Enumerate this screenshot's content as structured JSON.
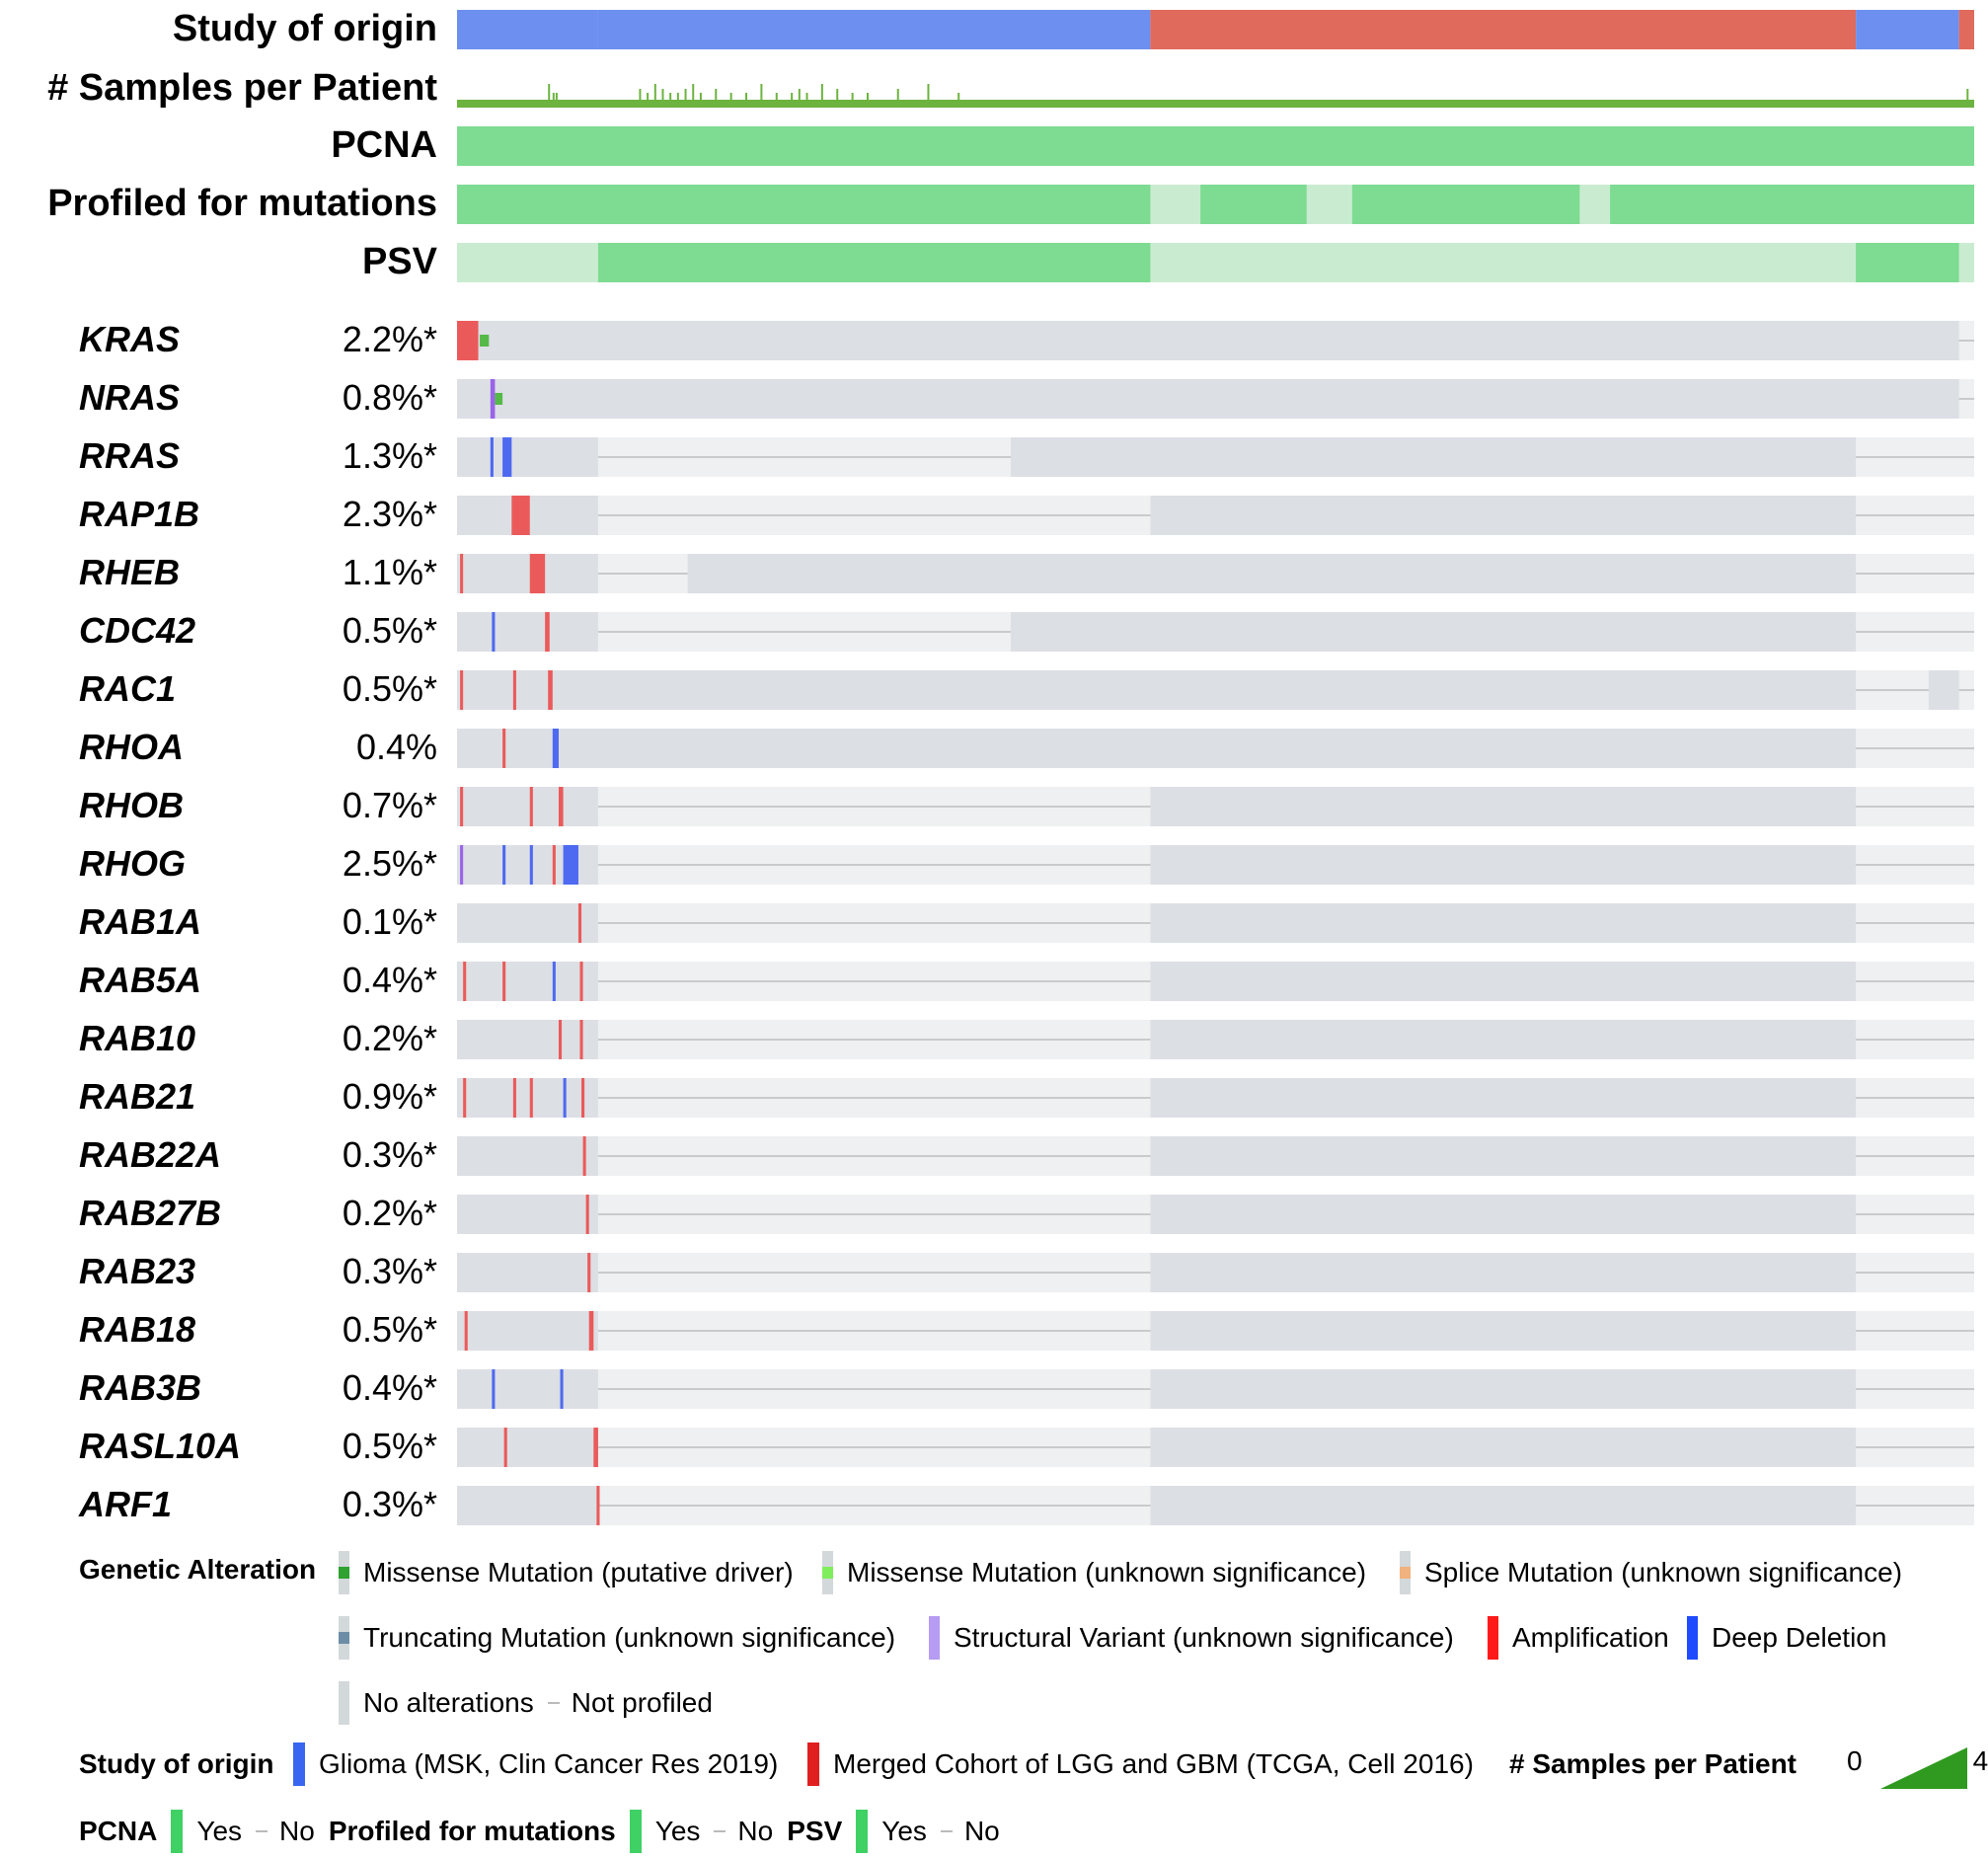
{
  "chart_data": {
    "type": "oncoprint",
    "sample_axis": {
      "min": 0,
      "max": 1
    },
    "clinical_tracks": [
      {
        "label": "Study of origin",
        "kind": "categorical",
        "segments": [
          {
            "from": 0.0,
            "to": 0.093,
            "study": "Glioma (MSK, Clin Cancer Res 2019)"
          },
          {
            "from": 0.093,
            "to": 0.457,
            "study": "Glioma (MSK, Clin Cancer Res 2019)"
          },
          {
            "from": 0.457,
            "to": 0.922,
            "study": "Merged Cohort of LGG and GBM (TCGA, Cell 2016)"
          },
          {
            "from": 0.922,
            "to": 0.99,
            "study": "Glioma (MSK, Clin Cancer Res 2019)"
          },
          {
            "from": 0.99,
            "to": 1.0,
            "study": "Merged Cohort of LGG and GBM (TCGA, Cell 2016)"
          }
        ]
      },
      {
        "label": "# Samples per Patient",
        "kind": "bar",
        "range": [
          0,
          4
        ]
      },
      {
        "label": "PCNA",
        "kind": "binary",
        "yes_ranges": [
          [
            0.0,
            1.0
          ]
        ]
      },
      {
        "label": "Profiled for mutations",
        "kind": "binary",
        "yes_ranges": [
          [
            0.0,
            0.457
          ],
          [
            0.49,
            0.56
          ],
          [
            0.59,
            0.74
          ],
          [
            0.76,
            1.0
          ]
        ]
      },
      {
        "label": "PSV",
        "kind": "binary",
        "yes_ranges": [
          [
            0.093,
            0.457
          ],
          [
            0.922,
            0.99
          ]
        ]
      }
    ],
    "genes": [
      {
        "name": "KRAS",
        "pct": "2.2%*",
        "profiled": [
          [
            0.0,
            0.99
          ]
        ],
        "alterations": [
          {
            "pos": 0.0,
            "width": 0.014,
            "type": "amp"
          },
          {
            "pos": 0.015,
            "width": 0.006,
            "type": "missense_driver"
          }
        ]
      },
      {
        "name": "NRAS",
        "pct": "0.8%*",
        "profiled": [
          [
            0.0,
            0.99
          ]
        ],
        "alterations": [
          {
            "pos": 0.022,
            "width": 0.003,
            "type": "sv"
          },
          {
            "pos": 0.025,
            "width": 0.005,
            "type": "missense_driver"
          }
        ]
      },
      {
        "name": "RRAS",
        "pct": "1.3%*",
        "profiled": [
          [
            0.0,
            0.093
          ],
          [
            0.365,
            0.922
          ]
        ],
        "alterations": [
          {
            "pos": 0.022,
            "width": 0.002,
            "type": "del"
          },
          {
            "pos": 0.03,
            "width": 0.006,
            "type": "del"
          }
        ]
      },
      {
        "name": "RAP1B",
        "pct": "2.3%*",
        "profiled": [
          [
            0.0,
            0.093
          ],
          [
            0.457,
            0.922
          ]
        ],
        "alterations": [
          {
            "pos": 0.036,
            "width": 0.012,
            "type": "amp"
          }
        ]
      },
      {
        "name": "RHEB",
        "pct": "1.1%*",
        "profiled": [
          [
            0.0,
            0.093
          ],
          [
            0.152,
            0.922
          ]
        ],
        "alterations": [
          {
            "pos": 0.002,
            "width": 0.002,
            "type": "amp"
          },
          {
            "pos": 0.048,
            "width": 0.01,
            "type": "amp"
          }
        ]
      },
      {
        "name": "CDC42",
        "pct": "0.5%*",
        "profiled": [
          [
            0.0,
            0.093
          ],
          [
            0.365,
            0.922
          ]
        ],
        "alterations": [
          {
            "pos": 0.023,
            "width": 0.002,
            "type": "del"
          },
          {
            "pos": 0.058,
            "width": 0.003,
            "type": "amp"
          }
        ]
      },
      {
        "name": "RAC1",
        "pct": "0.5%*",
        "profiled": [
          [
            0.0,
            0.922
          ],
          [
            0.97,
            0.99
          ]
        ],
        "alterations": [
          {
            "pos": 0.002,
            "width": 0.002,
            "type": "amp"
          },
          {
            "pos": 0.037,
            "width": 0.002,
            "type": "amp"
          },
          {
            "pos": 0.06,
            "width": 0.003,
            "type": "amp"
          }
        ]
      },
      {
        "name": "RHOA",
        "pct": "0.4%",
        "profiled": [
          [
            0.0,
            0.922
          ]
        ],
        "alterations": [
          {
            "pos": 0.03,
            "width": 0.002,
            "type": "amp"
          },
          {
            "pos": 0.063,
            "width": 0.004,
            "type": "del"
          }
        ]
      },
      {
        "name": "RHOB",
        "pct": "0.7%*",
        "profiled": [
          [
            0.0,
            0.093
          ],
          [
            0.457,
            0.922
          ]
        ],
        "alterations": [
          {
            "pos": 0.002,
            "width": 0.002,
            "type": "amp"
          },
          {
            "pos": 0.048,
            "width": 0.002,
            "type": "amp"
          },
          {
            "pos": 0.067,
            "width": 0.003,
            "type": "amp"
          }
        ]
      },
      {
        "name": "RHOG",
        "pct": "2.5%*",
        "profiled": [
          [
            0.0,
            0.093
          ],
          [
            0.457,
            0.922
          ]
        ],
        "alterations": [
          {
            "pos": 0.002,
            "width": 0.002,
            "type": "sv"
          },
          {
            "pos": 0.03,
            "width": 0.002,
            "type": "del"
          },
          {
            "pos": 0.048,
            "width": 0.002,
            "type": "del"
          },
          {
            "pos": 0.063,
            "width": 0.002,
            "type": "amp"
          },
          {
            "pos": 0.07,
            "width": 0.01,
            "type": "del"
          }
        ]
      },
      {
        "name": "RAB1A",
        "pct": "0.1%*",
        "profiled": [
          [
            0.0,
            0.093
          ],
          [
            0.457,
            0.922
          ]
        ],
        "alterations": [
          {
            "pos": 0.08,
            "width": 0.002,
            "type": "amp"
          }
        ]
      },
      {
        "name": "RAB5A",
        "pct": "0.4%*",
        "profiled": [
          [
            0.0,
            0.093
          ],
          [
            0.457,
            0.922
          ]
        ],
        "alterations": [
          {
            "pos": 0.004,
            "width": 0.002,
            "type": "amp"
          },
          {
            "pos": 0.03,
            "width": 0.002,
            "type": "amp"
          },
          {
            "pos": 0.063,
            "width": 0.002,
            "type": "del"
          },
          {
            "pos": 0.081,
            "width": 0.002,
            "type": "amp"
          }
        ]
      },
      {
        "name": "RAB10",
        "pct": "0.2%*",
        "profiled": [
          [
            0.0,
            0.093
          ],
          [
            0.457,
            0.922
          ]
        ],
        "alterations": [
          {
            "pos": 0.067,
            "width": 0.002,
            "type": "amp"
          },
          {
            "pos": 0.081,
            "width": 0.002,
            "type": "amp"
          }
        ]
      },
      {
        "name": "RAB21",
        "pct": "0.9%*",
        "profiled": [
          [
            0.0,
            0.093
          ],
          [
            0.457,
            0.922
          ]
        ],
        "alterations": [
          {
            "pos": 0.004,
            "width": 0.002,
            "type": "amp"
          },
          {
            "pos": 0.037,
            "width": 0.002,
            "type": "amp"
          },
          {
            "pos": 0.048,
            "width": 0.002,
            "type": "amp"
          },
          {
            "pos": 0.07,
            "width": 0.002,
            "type": "del"
          },
          {
            "pos": 0.082,
            "width": 0.002,
            "type": "amp"
          }
        ]
      },
      {
        "name": "RAB22A",
        "pct": "0.3%*",
        "profiled": [
          [
            0.0,
            0.093
          ],
          [
            0.457,
            0.922
          ]
        ],
        "alterations": [
          {
            "pos": 0.083,
            "width": 0.002,
            "type": "amp"
          }
        ]
      },
      {
        "name": "RAB27B",
        "pct": "0.2%*",
        "profiled": [
          [
            0.0,
            0.093
          ],
          [
            0.457,
            0.922
          ]
        ],
        "alterations": [
          {
            "pos": 0.085,
            "width": 0.002,
            "type": "amp"
          }
        ]
      },
      {
        "name": "RAB23",
        "pct": "0.3%*",
        "profiled": [
          [
            0.0,
            0.093
          ],
          [
            0.457,
            0.922
          ]
        ],
        "alterations": [
          {
            "pos": 0.086,
            "width": 0.002,
            "type": "amp"
          }
        ]
      },
      {
        "name": "RAB18",
        "pct": "0.5%*",
        "profiled": [
          [
            0.0,
            0.093
          ],
          [
            0.457,
            0.922
          ]
        ],
        "alterations": [
          {
            "pos": 0.005,
            "width": 0.002,
            "type": "amp"
          },
          {
            "pos": 0.087,
            "width": 0.003,
            "type": "amp"
          }
        ]
      },
      {
        "name": "RAB3B",
        "pct": "0.4%*",
        "profiled": [
          [
            0.0,
            0.093
          ],
          [
            0.457,
            0.922
          ]
        ],
        "alterations": [
          {
            "pos": 0.023,
            "width": 0.002,
            "type": "del"
          },
          {
            "pos": 0.068,
            "width": 0.002,
            "type": "del"
          }
        ]
      },
      {
        "name": "RASL10A",
        "pct": "0.5%*",
        "profiled": [
          [
            0.0,
            0.093
          ],
          [
            0.457,
            0.922
          ]
        ],
        "alterations": [
          {
            "pos": 0.031,
            "width": 0.002,
            "type": "amp"
          },
          {
            "pos": 0.09,
            "width": 0.003,
            "type": "amp"
          }
        ]
      },
      {
        "name": "ARF1",
        "pct": "0.3%*",
        "profiled": [
          [
            0.0,
            0.093
          ],
          [
            0.457,
            0.922
          ]
        ],
        "alterations": [
          {
            "pos": 0.092,
            "width": 0.002,
            "type": "amp"
          }
        ]
      }
    ],
    "colors": {
      "study_msk": "#6d8ff0",
      "study_tcga": "#e06a5b",
      "samples_bar": "#6cb33f",
      "yes": "#7edb92",
      "no": "#c9ecd1",
      "profiled": "#dcdfe4",
      "not_profiled_bg": "#eef0f1",
      "not_profiled_line": "#c8cacc",
      "amp": "#eb5a5a",
      "del": "#4e6af0",
      "missense_driver": "#55b948",
      "sv": "#9a64e8"
    }
  },
  "legend": {
    "genetic_title": "Genetic Alteration",
    "genetic_items": [
      {
        "label": "Missense Mutation (putative driver)",
        "color": "#2fa12f"
      },
      {
        "label": "Missense Mutation (unknown significance)",
        "color": "#7fee5c"
      },
      {
        "label": "Splice Mutation (unknown significance)",
        "color": "#f0b27e"
      },
      {
        "label": "Truncating Mutation (unknown significance)",
        "color": "#6d8da6"
      },
      {
        "label": "Structural Variant (unknown significance)",
        "color": "#b69cf3"
      },
      {
        "label": "Amplification",
        "color": "#ff1a1a"
      },
      {
        "label": "Deep Deletion",
        "color": "#1f4bff"
      },
      {
        "label": "No alterations",
        "color": "#d3d8db"
      },
      {
        "label": "Not profiled",
        "color": "#bbbbbb"
      }
    ],
    "study_title": "Study of origin",
    "study_items": [
      {
        "label": "Glioma (MSK, Clin Cancer Res 2019)",
        "color": "#3866f0"
      },
      {
        "label": "Merged Cohort of LGG and GBM (TCGA, Cell 2016)",
        "color": "#e01f1f"
      }
    ],
    "samples_title": "# Samples per Patient",
    "samples_min": "0",
    "samples_max": "4",
    "pcna_title": "PCNA",
    "profiled_title": "Profiled for mutations",
    "psv_title": "PSV",
    "yes_label": "Yes",
    "no_label": "No"
  }
}
